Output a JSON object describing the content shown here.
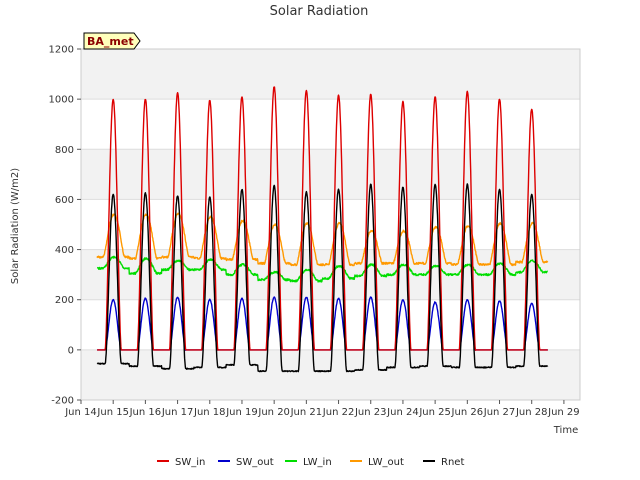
{
  "chart_data": {
    "type": "line",
    "title": "Solar Radiation",
    "xlabel": "Time",
    "ylabel": "Solar Radiation (W/m2)",
    "station_label": "BA_met",
    "xlim": [
      0,
      15.5
    ],
    "ylim": [
      -200,
      1200
    ],
    "grid": true,
    "legend_position": "bottom",
    "x_ticks": [
      {
        "x": 0,
        "label": "Jun 14"
      },
      {
        "x": 1,
        "label": "Jun 15"
      },
      {
        "x": 2,
        "label": "Jun 16"
      },
      {
        "x": 3,
        "label": "Jun 17"
      },
      {
        "x": 4,
        "label": "Jun 18"
      },
      {
        "x": 5,
        "label": "Jun 19"
      },
      {
        "x": 6,
        "label": "Jun 20"
      },
      {
        "x": 7,
        "label": "Jun 21"
      },
      {
        "x": 8,
        "label": "Jun 22"
      },
      {
        "x": 9,
        "label": "Jun 23"
      },
      {
        "x": 10,
        "label": "Jun 24"
      },
      {
        "x": 11,
        "label": "Jun 25"
      },
      {
        "x": 12,
        "label": "Jun 26"
      },
      {
        "x": 13,
        "label": "Jun 27"
      },
      {
        "x": 14,
        "label": "Jun 28"
      },
      {
        "x": 15,
        "label": "Jun 29"
      }
    ],
    "y_ticks": [
      -200,
      0,
      200,
      400,
      600,
      800,
      1000,
      1200
    ],
    "x_range_data": [
      0.5,
      14.5
    ],
    "series": [
      {
        "name": "SW_in",
        "color": "#dd0000",
        "daily_peak": [
          1000,
          1000,
          1025,
          995,
          1010,
          1050,
          1035,
          1015,
          1020,
          990,
          1010,
          1030,
          1000,
          960
        ],
        "night_value": 0
      },
      {
        "name": "SW_out",
        "color": "#0000cc",
        "daily_peak": [
          200,
          205,
          210,
          200,
          205,
          210,
          210,
          205,
          210,
          200,
          190,
          200,
          195,
          185
        ],
        "night_value": 0
      },
      {
        "name": "LW_in",
        "color": "#00dd00",
        "night_value": [
          325,
          305,
          320,
          320,
          300,
          280,
          275,
          285,
          295,
          300,
          300,
          300,
          300,
          310
        ],
        "daily_peak": [
          370,
          365,
          355,
          360,
          340,
          310,
          320,
          335,
          340,
          340,
          335,
          340,
          345,
          355
        ]
      },
      {
        "name": "LW_out",
        "color": "#ff9900",
        "night_value": [
          370,
          365,
          370,
          365,
          360,
          345,
          340,
          340,
          345,
          345,
          345,
          340,
          340,
          350
        ],
        "daily_peak": [
          540,
          540,
          545,
          530,
          515,
          500,
          505,
          505,
          475,
          475,
          490,
          495,
          505,
          505
        ]
      },
      {
        "name": "Rnet",
        "color": "#000000",
        "night_value": [
          -55,
          -65,
          -75,
          -70,
          -60,
          -85,
          -85,
          -85,
          -80,
          -70,
          -65,
          -70,
          -70,
          -65
        ],
        "daily_peak": [
          620,
          625,
          615,
          610,
          640,
          655,
          630,
          640,
          660,
          650,
          660,
          660,
          640,
          620
        ]
      }
    ]
  }
}
